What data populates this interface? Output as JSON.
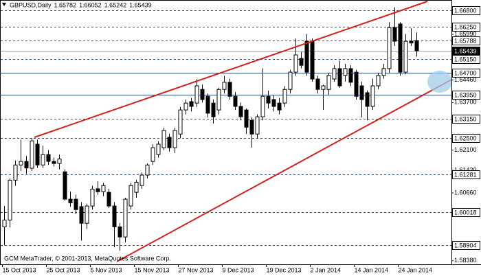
{
  "chart_data": {
    "type": "candlestick",
    "symbol": "GBPUSD,Daily",
    "ohlc_labels": [
      "1.65782",
      "1.66052",
      "1.65242",
      "1.65439"
    ],
    "watermark": "GCM MetaTrader, © 2001-2013, MetaQuotes Software Corp.",
    "categories": [
      "15 Oct 2013",
      null,
      null,
      null,
      null,
      null,
      null,
      null,
      "25 Oct 2013",
      null,
      null,
      null,
      null,
      null,
      null,
      null,
      "5 Nov 2013",
      null,
      null,
      null,
      null,
      null,
      null,
      null,
      "15 Nov 2013",
      null,
      null,
      null,
      null,
      null,
      null,
      null,
      "27 Nov 2013",
      null,
      null,
      null,
      null,
      null,
      null,
      null,
      "9 Dec 2013",
      null,
      null,
      null,
      null,
      null,
      null,
      null,
      "19 Dec 2013",
      null,
      null,
      null,
      null,
      null,
      null,
      null,
      "2 Jan 2014",
      null,
      null,
      null,
      null,
      null,
      null,
      null,
      "14 Jan 2014",
      null,
      null,
      null,
      null,
      null,
      null,
      null,
      "24 Jan 2014",
      null,
      null,
      null
    ],
    "open": [
      1.5952,
      1.5975,
      1.6109,
      1.616,
      1.6172,
      1.6149,
      1.623,
      1.616,
      1.6195,
      1.6172,
      1.6165,
      1.6137,
      1.6045,
      1.6045,
      1.602,
      1.5964,
      1.6022,
      1.608,
      1.607,
      1.6068,
      1.6022,
      1.5952,
      1.5918,
      1.6022,
      1.6068,
      1.6091,
      1.6126,
      1.6172,
      1.6195,
      1.6218,
      1.6253,
      1.6218,
      1.6264,
      1.6345,
      1.6373,
      1.6368,
      1.6414,
      1.6391,
      1.6368,
      1.6345,
      1.6414,
      1.6438,
      1.6391,
      1.6357,
      1.6345,
      1.631,
      1.6264,
      1.6322,
      1.6391,
      1.638,
      1.6368,
      1.6368,
      1.6414,
      1.6472,
      1.6518,
      1.6576,
      1.6576,
      1.6449,
      1.6414,
      1.6414,
      1.6449,
      1.6484,
      1.6461,
      1.6484,
      1.6472,
      1.6426,
      1.6403,
      1.6357,
      1.6426,
      1.6461,
      1.6484,
      1.6622,
      1.6634,
      1.6472,
      1.6576,
      1.65782
    ],
    "high": [
      1.6022,
      1.6115,
      1.6175,
      1.6245,
      1.619,
      1.625,
      1.6245,
      1.6225,
      1.621,
      1.6185,
      1.6195,
      1.6145,
      1.607,
      1.606,
      1.6035,
      1.603,
      1.609,
      1.6105,
      1.61,
      1.608,
      1.6035,
      1.5965,
      1.605,
      1.61,
      1.611,
      1.6135,
      1.6165,
      1.623,
      1.624,
      1.6285,
      1.6265,
      1.6285,
      1.6355,
      1.638,
      1.6385,
      1.6448,
      1.643,
      1.64,
      1.638,
      1.642,
      1.646,
      1.645,
      1.6405,
      1.637,
      1.635,
      1.632,
      1.633,
      1.6485,
      1.641,
      1.6395,
      1.6385,
      1.6425,
      1.648,
      1.6585,
      1.654,
      1.66,
      1.6585,
      1.646,
      1.643,
      1.647,
      1.6495,
      1.651,
      1.65,
      1.6495,
      1.648,
      1.644,
      1.641,
      1.645,
      1.647,
      1.65,
      1.664,
      1.669,
      1.664,
      1.66,
      1.662,
      1.66052
    ],
    "low": [
      1.589,
      1.595,
      1.609,
      1.614,
      1.613,
      1.614,
      1.615,
      1.615,
      1.616,
      1.6155,
      1.6145,
      1.604,
      1.602,
      1.5995,
      1.5906,
      1.5945,
      1.601,
      1.606,
      1.6055,
      1.6015,
      1.5883,
      1.5872,
      1.59,
      1.601,
      1.605,
      1.608,
      1.6115,
      1.616,
      1.6185,
      1.621,
      1.6205,
      1.62,
      1.625,
      1.633,
      1.634,
      1.6355,
      1.637,
      1.632,
      1.63,
      1.633,
      1.64,
      1.638,
      1.6345,
      1.631,
      1.6264,
      1.6218,
      1.625,
      1.631,
      1.635,
      1.634,
      1.633,
      1.6355,
      1.64,
      1.646,
      1.6485,
      1.646,
      1.644,
      1.64,
      1.6345,
      1.6395,
      1.644,
      1.642,
      1.644,
      1.6425,
      1.638,
      1.632,
      1.631,
      1.6345,
      1.6415,
      1.645,
      1.647,
      1.656,
      1.646,
      1.6465,
      1.656,
      1.65242
    ],
    "close": [
      1.5975,
      1.6109,
      1.616,
      1.6172,
      1.615,
      1.6241,
      1.616,
      1.6195,
      1.6172,
      1.6165,
      1.618,
      1.6045,
      1.6033,
      1.601,
      1.5964,
      1.6022,
      1.6079,
      1.607,
      1.6091,
      1.6022,
      1.5952,
      1.5918,
      1.6045,
      1.6091,
      1.6102,
      1.6126,
      1.616,
      1.6218,
      1.623,
      1.6276,
      1.6218,
      1.6276,
      1.6345,
      1.6368,
      1.6357,
      1.6426,
      1.638,
      1.6334,
      1.6322,
      1.6414,
      1.6438,
      1.6391,
      1.6357,
      1.6322,
      1.6287,
      1.6264,
      1.6322,
      1.6391,
      1.6368,
      1.6357,
      1.6345,
      1.6414,
      1.6472,
      1.653,
      1.6495,
      1.6472,
      1.6449,
      1.6414,
      1.6426,
      1.6461,
      1.6484,
      1.6426,
      1.6484,
      1.6438,
      1.6391,
      1.638,
      1.6357,
      1.6426,
      1.6461,
      1.6484,
      1.6622,
      1.6576,
      1.6472,
      1.6576,
      1.657,
      1.65439
    ],
    "bull_color": "#ffffff",
    "bear_color": "#000000",
    "ylim": [
      1.5826,
      1.671
    ],
    "yticks": [
      {
        "value": 1.6599,
        "label": "1.65990"
      },
      {
        "value": 1.6446,
        "label": "1.64460"
      },
      {
        "value": 1.637,
        "label": "1.63700"
      },
      {
        "value": 1.621,
        "label": "1.62100"
      },
      {
        "value": 1.6142,
        "label": "1.61420"
      },
      {
        "value": 1.6066,
        "label": "1.60660"
      },
      {
        "value": 1.5838,
        "label": "1.58380"
      }
    ],
    "levels": [
      {
        "value": 1.668,
        "label": "1.66800",
        "style": "dashed"
      },
      {
        "value": 1.6625,
        "label": "1.66250",
        "style": "dashed"
      },
      {
        "value": 1.65788,
        "label": "1.65788",
        "style": "dashed"
      },
      {
        "value": 1.6515,
        "label": "1.65150",
        "style": "dashed"
      },
      {
        "value": 1.647,
        "label": "1.64700",
        "style": "solid"
      },
      {
        "value": 1.6395,
        "label": "1.63950",
        "style": "solid"
      },
      {
        "value": 1.6315,
        "label": "1.63150",
        "style": "dashed"
      },
      {
        "value": 1.625,
        "label": "1.62500",
        "style": "dashed"
      },
      {
        "value": 1.61281,
        "label": "1.61281",
        "style": "dashed"
      },
      {
        "value": 1.60018,
        "label": "1.60018",
        "style": "dashed"
      },
      {
        "value": 1.58904,
        "label": "1.58904",
        "style": "dashed"
      }
    ],
    "last_price": {
      "value": 1.65439,
      "label": "1.65439"
    },
    "level_color": "#2b4f86"
  }
}
